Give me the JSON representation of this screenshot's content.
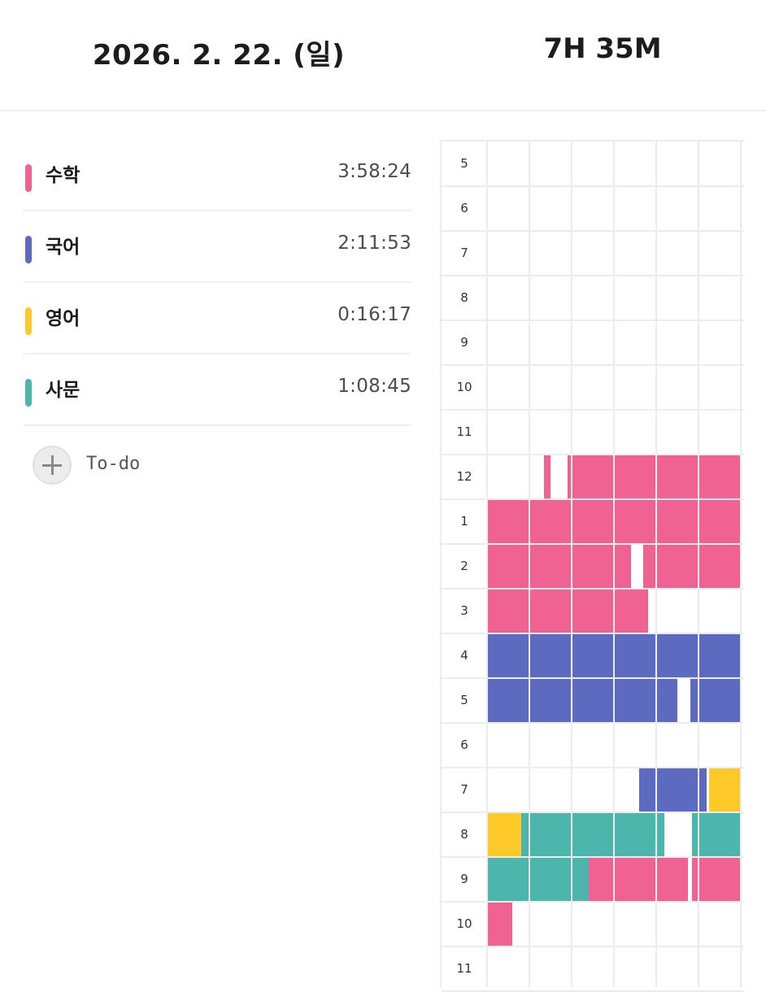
{
  "header": {
    "date": "2026. 2. 22. (일)",
    "total": "7H 35M"
  },
  "colors": {
    "pink": "#f06292",
    "blue": "#5c6bc0",
    "yellow": "#fdca2a",
    "teal": "#4db6ac"
  },
  "subjects": [
    {
      "name": "수학",
      "time": "3:58:24",
      "color": "#f06292"
    },
    {
      "name": "국어",
      "time": "2:11:53",
      "color": "#5c6bc0"
    },
    {
      "name": "영어",
      "time": "0:16:17",
      "color": "#fdca2a"
    },
    {
      "name": "사문",
      "time": "1:08:45",
      "color": "#4db6ac"
    }
  ],
  "todo": {
    "label": "To-do",
    "icon": "plus-icon"
  },
  "timetable": {
    "hours": [
      "5",
      "6",
      "7",
      "8",
      "9",
      "10",
      "11",
      "12",
      "1",
      "2",
      "3",
      "4",
      "5",
      "6",
      "7",
      "8",
      "9",
      "10",
      "11"
    ],
    "blocks": [
      {
        "hour": 7,
        "start": 1.35,
        "end": 1.5,
        "subject": "수학"
      },
      {
        "hour": 7,
        "start": 1.9,
        "end": 6,
        "subject": "수학"
      },
      {
        "hour": 8,
        "start": 0,
        "end": 6,
        "subject": "수학"
      },
      {
        "hour": 9,
        "start": 0,
        "end": 3.4,
        "subject": "수학"
      },
      {
        "hour": 9,
        "start": 3.7,
        "end": 6,
        "subject": "수학"
      },
      {
        "hour": 10,
        "start": 0,
        "end": 3.8,
        "subject": "수학"
      },
      {
        "hour": 11,
        "start": 0,
        "end": 6,
        "subject": "국어"
      },
      {
        "hour": 12,
        "start": 0,
        "end": 4.5,
        "subject": "국어"
      },
      {
        "hour": 12,
        "start": 4.8,
        "end": 6,
        "subject": "국어"
      },
      {
        "hour": 14,
        "start": 3.6,
        "end": 5.2,
        "subject": "국어"
      },
      {
        "hour": 14,
        "start": 5.25,
        "end": 6,
        "subject": "영어"
      },
      {
        "hour": 15,
        "start": 0,
        "end": 0.8,
        "subject": "영어"
      },
      {
        "hour": 15,
        "start": 0.8,
        "end": 4.2,
        "subject": "사문"
      },
      {
        "hour": 15,
        "start": 4.85,
        "end": 6,
        "subject": "사문"
      },
      {
        "hour": 16,
        "start": 0,
        "end": 2.4,
        "subject": "사문"
      },
      {
        "hour": 16,
        "start": 2.4,
        "end": 4.75,
        "subject": "수학"
      },
      {
        "hour": 16,
        "start": 4.85,
        "end": 6,
        "subject": "수학"
      },
      {
        "hour": 17,
        "start": 0,
        "end": 0.6,
        "subject": "수학"
      }
    ]
  }
}
